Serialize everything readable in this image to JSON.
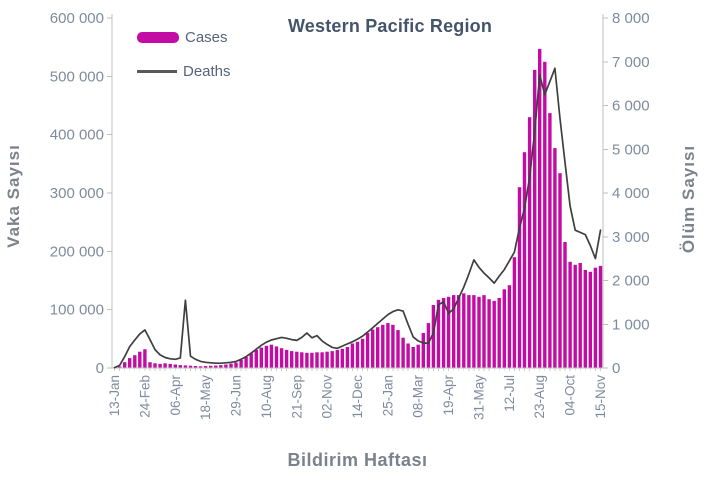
{
  "title": "Western Pacific Region",
  "legend": {
    "cases_label": "Cases",
    "deaths_label": "Deaths"
  },
  "axes": {
    "left_title": "Vaka Sayısı",
    "right_title": "Ölüm Sayısı",
    "x_title": "Bildirim Haftası"
  },
  "colors": {
    "cases_bar": "#C20CA4",
    "deaths_line": "#3F3F3F",
    "legend_line": "#595959",
    "title_text": "#44546A",
    "legend_text": "#57637A",
    "axis_tick_text": "#7F8B9D",
    "axis_title_text": "#7C828C",
    "spine": "#BFBFBF",
    "minor_tick": "#C9CDD4",
    "background": "#FFFFFF"
  },
  "chart_data": {
    "type": "combo",
    "subtype": [
      "bar",
      "line"
    ],
    "title": "Western Pacific Region",
    "xlabel": "Bildirim Haftası",
    "ylabel_left": "Vaka Sayısı",
    "ylabel_right": "Ölüm Sayısı",
    "grid": false,
    "legend_position": "top-left-inside",
    "x_tick_interval": 6,
    "x_tick_labels": [
      "13-Jan",
      "24-Feb",
      "06-Apr",
      "18-May",
      "29-Jun",
      "10-Aug",
      "21-Sep",
      "02-Nov",
      "14-Dec",
      "25-Jan",
      "08-Mar",
      "19-Apr",
      "31-May",
      "12-Jul",
      "23-Aug",
      "04-Oct",
      "15-Nov"
    ],
    "left_axis": {
      "min": 0,
      "max": 600000,
      "step": 100000,
      "tick_labels": [
        "600 000",
        "500 000",
        "400 000",
        "300 000",
        "200 000",
        "100 000",
        "0"
      ]
    },
    "right_axis": {
      "min": 0,
      "max": 8000,
      "step": 1000,
      "tick_labels": [
        "8 000",
        "7 000",
        "6 000",
        "5 000",
        "4 000",
        "3 000",
        "2 000",
        "1 000",
        "0"
      ]
    },
    "weeks": [
      "2020-01-13",
      "2020-01-20",
      "2020-01-27",
      "2020-02-03",
      "2020-02-10",
      "2020-02-17",
      "2020-02-24",
      "2020-03-02",
      "2020-03-09",
      "2020-03-16",
      "2020-03-23",
      "2020-03-30",
      "2020-04-06",
      "2020-04-13",
      "2020-04-20",
      "2020-04-27",
      "2020-05-04",
      "2020-05-11",
      "2020-05-18",
      "2020-05-25",
      "2020-06-01",
      "2020-06-08",
      "2020-06-15",
      "2020-06-22",
      "2020-06-29",
      "2020-07-06",
      "2020-07-13",
      "2020-07-20",
      "2020-07-27",
      "2020-08-03",
      "2020-08-10",
      "2020-08-17",
      "2020-08-24",
      "2020-08-31",
      "2020-09-07",
      "2020-09-14",
      "2020-09-21",
      "2020-09-28",
      "2020-10-05",
      "2020-10-12",
      "2020-10-19",
      "2020-10-26",
      "2020-11-02",
      "2020-11-09",
      "2020-11-16",
      "2020-11-23",
      "2020-11-30",
      "2020-12-07",
      "2020-12-14",
      "2020-12-21",
      "2020-12-28",
      "2021-01-04",
      "2021-01-11",
      "2021-01-18",
      "2021-01-25",
      "2021-02-01",
      "2021-02-08",
      "2021-02-15",
      "2021-02-22",
      "2021-03-01",
      "2021-03-08",
      "2021-03-15",
      "2021-03-22",
      "2021-03-29",
      "2021-04-05",
      "2021-04-12",
      "2021-04-19",
      "2021-04-26",
      "2021-05-03",
      "2021-05-10",
      "2021-05-17",
      "2021-05-24",
      "2021-05-31",
      "2021-06-07",
      "2021-06-14",
      "2021-06-21",
      "2021-06-28",
      "2021-07-05",
      "2021-07-12",
      "2021-07-19",
      "2021-07-26",
      "2021-08-02",
      "2021-08-09",
      "2021-08-16",
      "2021-08-23",
      "2021-08-30",
      "2021-09-06",
      "2021-09-13",
      "2021-09-20",
      "2021-09-27",
      "2021-10-04",
      "2021-10-11",
      "2021-10-18",
      "2021-10-25",
      "2021-11-01",
      "2021-11-08",
      "2021-11-15"
    ],
    "series": [
      {
        "name": "Cases",
        "type": "bar",
        "axis": "left",
        "values": [
          300,
          2600,
          10000,
          17000,
          22000,
          28000,
          32000,
          10000,
          8000,
          7000,
          8000,
          7000,
          6000,
          5000,
          4500,
          4000,
          3500,
          3000,
          3500,
          3800,
          4200,
          5000,
          6000,
          7500,
          9500,
          14000,
          19000,
          25000,
          31000,
          35000,
          38000,
          40000,
          37000,
          34000,
          31000,
          29000,
          28000,
          27000,
          26000,
          26000,
          27000,
          27000,
          28000,
          29000,
          31000,
          33000,
          36000,
          42000,
          45000,
          50000,
          60000,
          66000,
          70000,
          74000,
          77000,
          74000,
          65000,
          52000,
          42000,
          36000,
          40000,
          60000,
          77000,
          108000,
          117000,
          120000,
          122000,
          125000,
          125000,
          128000,
          125000,
          125000,
          122000,
          125000,
          118000,
          115000,
          120000,
          135000,
          142000,
          190000,
          310000,
          370000,
          430000,
          511000,
          547000,
          525000,
          437000,
          377000,
          334000,
          216000,
          182000,
          177000,
          180000,
          168000,
          165000,
          172000,
          175000
        ]
      },
      {
        "name": "Deaths",
        "type": "line",
        "axis": "right",
        "values": [
          10,
          60,
          260,
          490,
          640,
          780,
          870,
          650,
          420,
          300,
          240,
          210,
          200,
          230,
          1550,
          270,
          200,
          150,
          130,
          120,
          110,
          110,
          120,
          130,
          150,
          200,
          260,
          340,
          430,
          520,
          590,
          640,
          670,
          700,
          680,
          650,
          630,
          700,
          800,
          690,
          740,
          620,
          540,
          470,
          450,
          500,
          550,
          600,
          660,
          730,
          820,
          920,
          1020,
          1120,
          1220,
          1290,
          1330,
          1300,
          1000,
          710,
          620,
          570,
          570,
          800,
          1450,
          1510,
          1250,
          1350,
          1600,
          1850,
          2150,
          2470,
          2300,
          2170,
          2060,
          1940,
          2100,
          2250,
          2450,
          2650,
          3200,
          3650,
          4350,
          5400,
          6700,
          6250,
          6550,
          6850,
          5700,
          4700,
          3700,
          3150,
          3100,
          3050,
          2800,
          2500,
          3150
        ]
      }
    ]
  }
}
